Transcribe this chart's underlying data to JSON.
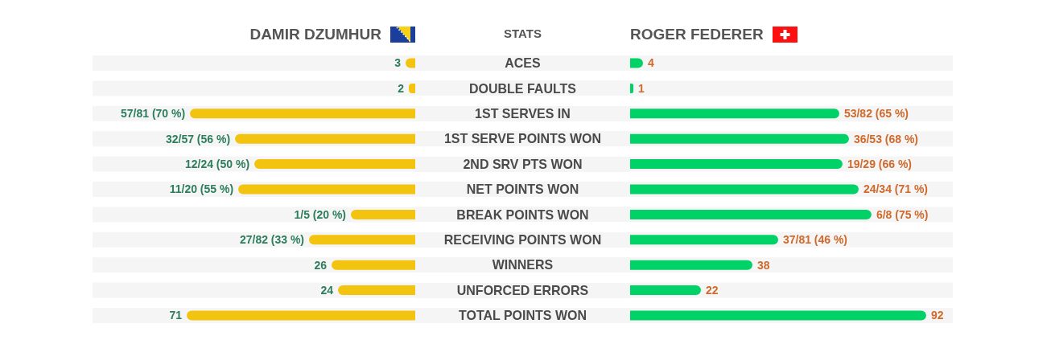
{
  "chart_data": [
    {
      "type": "bar",
      "orientation": "horizontal",
      "title": "DAMIR DZUMHUR",
      "ylabel": "STATS",
      "categories": [
        "ACES",
        "DOUBLE FAULTS",
        "1ST SERVES IN",
        "1ST SERVE POINTS WON",
        "2ND SRV PTS WON",
        "NET POINTS WON",
        "BREAK POINTS WON",
        "RECEIVING POINTS WON",
        "WINNERS",
        "UNFORCED ERRORS",
        "TOTAL POINTS WON"
      ],
      "tick_labels": "y",
      "series": [
        {
          "color": "#f2c30f",
          "values": [
            3,
            2,
            70,
            56,
            50,
            55,
            20,
            33,
            26,
            24,
            71
          ],
          "value_labels": [
            "3",
            "2",
            "57/81 (70 %)",
            "32/57 (56 %)",
            "12/24 (50 %)",
            "11/20 (55 %)",
            "1/5 (20 %)",
            "27/82 (33 %)",
            "26",
            "24",
            "71"
          ]
        }
      ]
    },
    {
      "type": "bar",
      "orientation": "horizontal",
      "title": "ROGER FEDERER",
      "categories": [
        "ACES",
        "DOUBLE FAULTS",
        "1ST SERVES IN",
        "1ST SERVE POINTS WON",
        "2ND SRV PTS WON",
        "NET POINTS WON",
        "BREAK POINTS WON",
        "RECEIVING POINTS WON",
        "WINNERS",
        "UNFORCED ERRORS",
        "TOTAL POINTS WON"
      ],
      "tick_labels": false,
      "series": [
        {
          "color": "#00d267",
          "values": [
            4,
            1,
            65,
            68,
            66,
            71,
            75,
            46,
            38,
            22,
            92
          ],
          "value_labels": [
            "4",
            "1",
            "53/82 (65 %)",
            "36/53 (68 %)",
            "19/29 (66 %)",
            "24/34 (71 %)",
            "6/8 (75 %)",
            "37/81 (46 %)",
            "38",
            "22",
            "92"
          ]
        }
      ]
    }
  ]
}
